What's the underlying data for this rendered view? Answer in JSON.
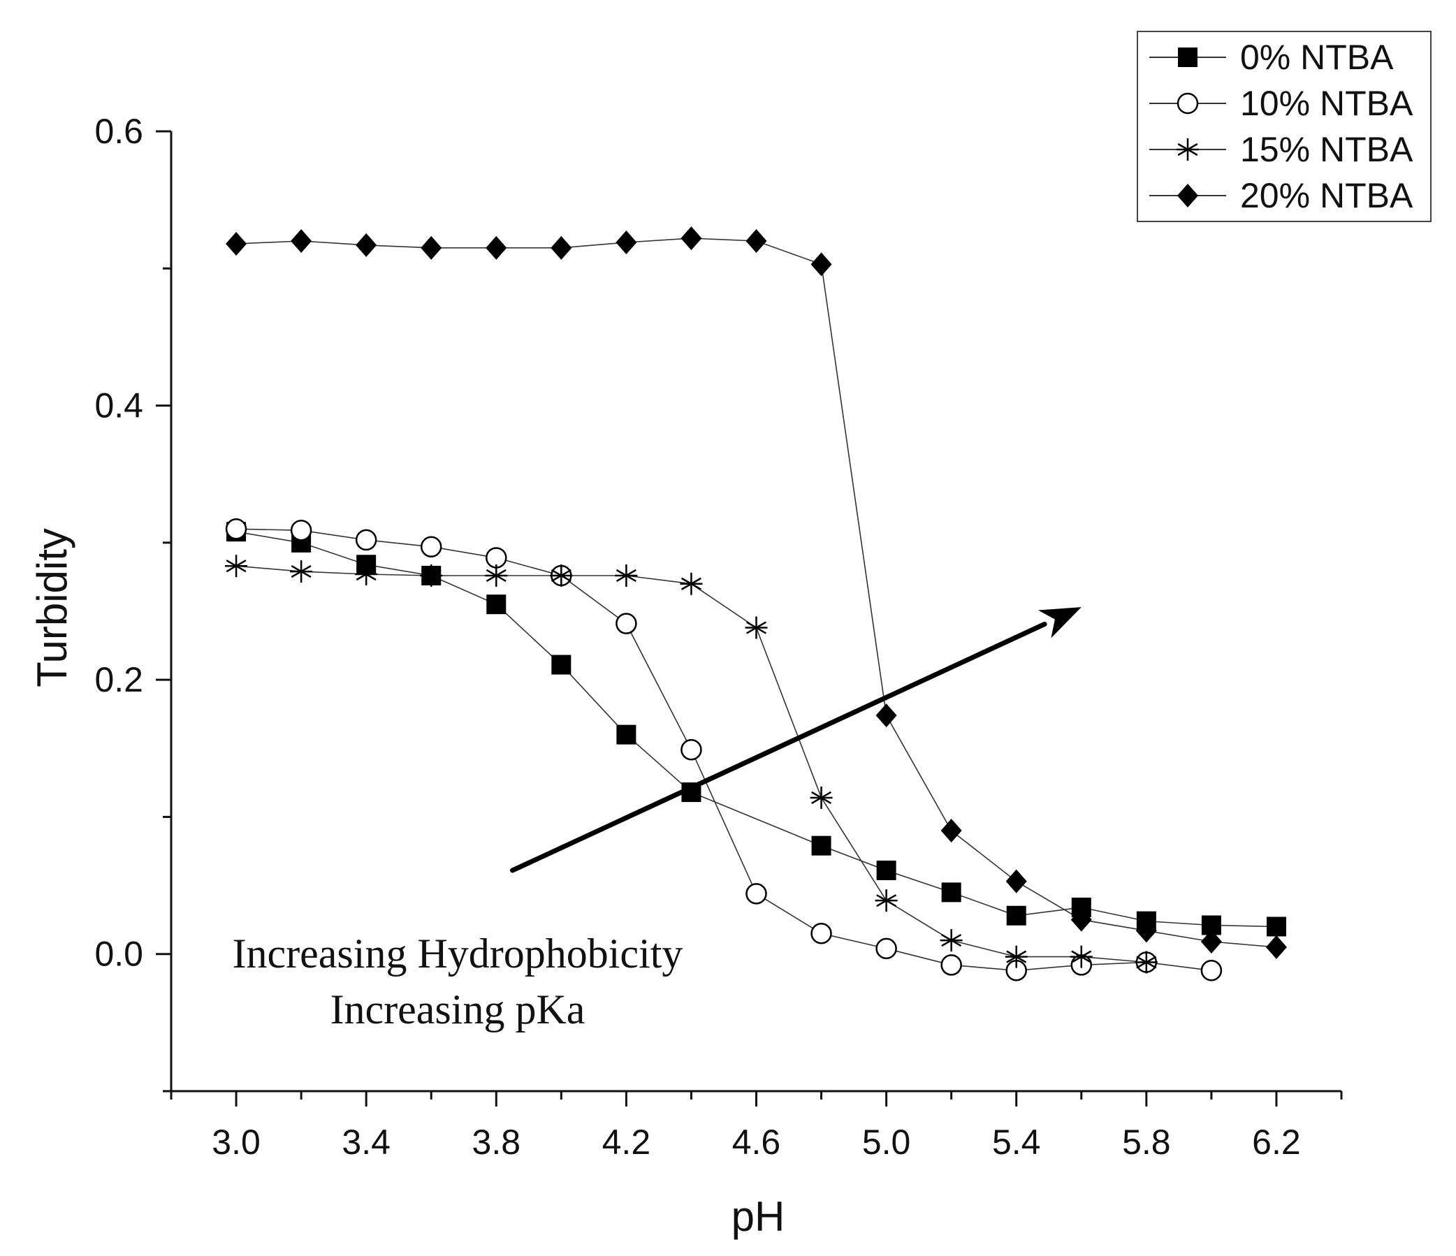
{
  "chart_data": {
    "type": "line",
    "xlabel": "pH",
    "ylabel": "Turbidity",
    "xlim": [
      2.8,
      6.4
    ],
    "ylim": [
      -0.1,
      0.6
    ],
    "xticks": [
      3.0,
      3.4,
      3.8,
      4.2,
      4.6,
      5.0,
      5.4,
      5.8,
      6.2
    ],
    "xtick_labels": [
      "3.0",
      "3.4",
      "3.8",
      "4.2",
      "4.6",
      "5.0",
      "5.4",
      "5.8",
      "6.2"
    ],
    "yticks": [
      0.0,
      0.2,
      0.4,
      0.6
    ],
    "ytick_labels": [
      "0.0",
      "0.2",
      "0.4",
      "0.6"
    ],
    "grid": false,
    "legend_position": "top-right",
    "series": [
      {
        "name": "0% NTBA",
        "marker": "filled-square",
        "x": [
          3.0,
          3.2,
          3.4,
          3.6,
          3.8,
          4.0,
          4.2,
          4.4,
          4.8,
          5.0,
          5.2,
          5.4,
          5.6,
          5.8,
          6.0,
          6.2
        ],
        "values": [
          0.308,
          0.3,
          0.284,
          0.276,
          0.255,
          0.211,
          0.16,
          0.118,
          0.079,
          0.061,
          0.045,
          0.028,
          0.034,
          0.024,
          0.021,
          0.02
        ]
      },
      {
        "name": "10% NTBA",
        "marker": "open-circle",
        "x": [
          3.0,
          3.2,
          3.4,
          3.6,
          3.8,
          4.0,
          4.2,
          4.4,
          4.6,
          4.8,
          5.0,
          5.2,
          5.4,
          5.6,
          5.8,
          6.0
        ],
        "values": [
          0.31,
          0.309,
          0.302,
          0.297,
          0.289,
          0.276,
          0.241,
          0.149,
          0.044,
          0.015,
          0.004,
          -0.008,
          -0.012,
          -0.008,
          -0.006,
          -0.012
        ]
      },
      {
        "name": "15% NTBA",
        "marker": "asterisk",
        "x": [
          3.0,
          3.2,
          3.4,
          3.6,
          3.8,
          4.0,
          4.2,
          4.4,
          4.6,
          4.8,
          5.0,
          5.2,
          5.4,
          5.6,
          5.8
        ],
        "values": [
          0.283,
          0.279,
          0.277,
          0.276,
          0.276,
          0.276,
          0.276,
          0.27,
          0.238,
          0.114,
          0.039,
          0.01,
          -0.002,
          -0.002,
          -0.006
        ]
      },
      {
        "name": "20% NTBA",
        "marker": "filled-diamond",
        "x": [
          3.0,
          3.2,
          3.4,
          3.6,
          3.8,
          4.0,
          4.2,
          4.4,
          4.6,
          4.8,
          5.0,
          5.2,
          5.4,
          5.6,
          5.8,
          6.0,
          6.2
        ],
        "values": [
          0.518,
          0.52,
          0.517,
          0.515,
          0.515,
          0.515,
          0.519,
          0.522,
          0.52,
          0.503,
          0.174,
          0.09,
          0.053,
          0.025,
          0.017,
          0.009,
          0.005
        ]
      }
    ],
    "annotations": {
      "arrow": {
        "from": [
          3.85,
          0.061
        ],
        "to": [
          5.6,
          0.253
        ]
      },
      "text_lines": [
        "Increasing Hydrophobicity",
        "Increasing pKa"
      ]
    }
  }
}
